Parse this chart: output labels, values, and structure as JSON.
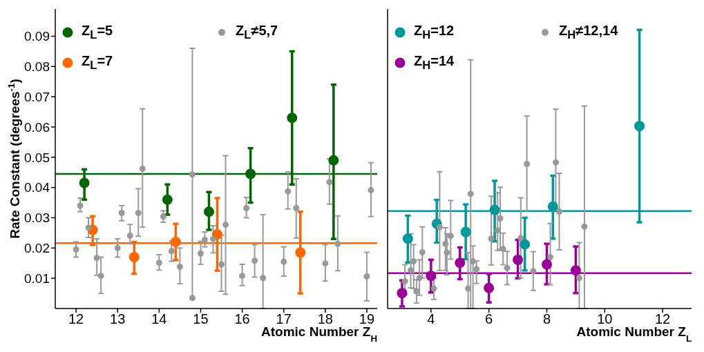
{
  "chart_data": [
    {
      "type": "scatter",
      "xlabel": "Atomic Number Z$_{H}$",
      "ylabel": "Rate Constant (degrees$^{-1}$)",
      "xlim": [
        11.5,
        19.25
      ],
      "xticks": [
        12,
        13,
        14,
        15,
        16,
        17,
        18,
        19
      ],
      "ylim": [
        0,
        0.099
      ],
      "yticks": [
        0.01,
        0.02,
        0.03,
        0.04,
        0.05,
        0.06,
        0.07,
        0.08,
        0.09
      ],
      "marker": "circle",
      "legend": "top",
      "grid": false,
      "series": [
        {
          "name": "Z$_{L}$=5",
          "color": "#006600",
          "x": [
            12.2,
            14.2,
            15.2,
            16.2,
            17.2,
            18.2
          ],
          "values": [
            0.0415,
            0.036,
            0.032,
            0.0445,
            0.063,
            0.049
          ],
          "errors": [
            [
              0.036,
              0.046
            ],
            [
              0.031,
              0.041
            ],
            [
              0.026,
              0.0385
            ],
            [
              0.035,
              0.053
            ],
            [
              0.041,
              0.085
            ],
            [
              0.023,
              0.074
            ]
          ]
        },
        {
          "name": "Z$_{L}$=7",
          "color": "#ff6600",
          "x": [
            12.4,
            13.4,
            14.4,
            15.4,
            17.4
          ],
          "values": [
            0.026,
            0.017,
            0.022,
            0.0245,
            0.0185
          ],
          "errors": [
            [
              0.021,
              0.0305
            ],
            [
              0.0115,
              0.022
            ],
            [
              0.016,
              0.028
            ],
            [
              0.0125,
              0.0365
            ],
            [
              0.005,
              0.032
            ]
          ]
        },
        {
          "name": "Z$_{L}$≠5,7",
          "color": "#999999",
          "x": [
            12.0,
            12.1,
            12.3,
            12.5,
            12.6,
            13.0,
            13.1,
            13.3,
            13.5,
            13.6,
            14.0,
            14.1,
            14.3,
            14.5,
            14.8,
            14.8,
            15.0,
            15.1,
            15.3,
            15.5,
            15.6,
            16.0,
            16.1,
            16.3,
            16.5,
            17.0,
            17.1,
            17.3,
            18.0,
            18.1,
            18.3,
            19.0,
            19.1
          ],
          "values": [
            0.0195,
            0.034,
            0.0267,
            0.0167,
            0.0108,
            0.02,
            0.0316,
            0.0241,
            0.0316,
            0.0462,
            0.0151,
            0.0304,
            0.019,
            0.0138,
            0.0443,
            0.0035,
            0.0182,
            0.0227,
            0.023,
            0.0146,
            0.0277,
            0.0108,
            0.0332,
            0.0158,
            0.0101,
            0.0155,
            0.0387,
            0.0332,
            0.0149,
            0.0418,
            0.0214,
            0.0106,
            0.0391
          ],
          "errors": [
            [
              0.017,
              0.022
            ],
            [
              0.032,
              0.0365
            ],
            [
              0.0235,
              0.03
            ],
            [
              0.011,
              0.023
            ],
            [
              0.005,
              0.017
            ],
            [
              0.017,
              0.023
            ],
            [
              0.029,
              0.034
            ],
            [
              0.0214,
              0.0278
            ],
            [
              0.0239,
              0.0396
            ],
            [
              0.0269,
              0.066
            ],
            [
              0.0127,
              0.0178
            ],
            [
              0.0285,
              0.0323
            ],
            [
              0.0156,
              0.0223
            ],
            [
              0.0082,
              0.02
            ],
            [
              0.003,
              0.086
            ],
            null,
            [
              0.0146,
              0.0222
            ],
            [
              0.0204,
              0.0253
            ],
            [
              0.0184,
              0.0274
            ],
            [
              0.0057,
              0.0243
            ],
            [
              0.0047,
              0.0505
            ],
            [
              0.0076,
              0.0146
            ],
            [
              0.03,
              0.0367
            ],
            [
              0.0104,
              0.0211
            ],
            [
              0,
              0.031
            ],
            [
              0.0107,
              0.0204
            ],
            [
              0.0329,
              0.0451
            ],
            [
              0.0233,
              0.0429
            ],
            [
              0.0091,
              0.0211
            ],
            [
              0.0345,
              0.0495
            ],
            [
              0.0125,
              0.0306
            ],
            [
              0.0025,
              0.0186
            ],
            [
              0.0304,
              0.0482
            ]
          ]
        }
      ],
      "ref_lines": [
        {
          "axis": "y",
          "value": 0.0445,
          "color": "#006600"
        },
        {
          "axis": "y",
          "value": 0.0216,
          "color": "#ff6600"
        }
      ]
    },
    {
      "type": "scatter",
      "xlabel": "Atomic Number Z$_{L}$",
      "xlim": [
        2.5,
        13
      ],
      "xticks": [
        4,
        6,
        8,
        10,
        12
      ],
      "ylim": [
        0,
        0.099
      ],
      "yticks": [
        0.01,
        0.02,
        0.03,
        0.04,
        0.05,
        0.06,
        0.07,
        0.08,
        0.09
      ],
      "tick_labels": "x",
      "marker": "circle",
      "legend": "top",
      "grid": false,
      "series": [
        {
          "name": "Z$_{H}$=12",
          "color": "#009999",
          "x": [
            3.2,
            4.2,
            5.2,
            6.2,
            7.24,
            8.21,
            11.2
          ],
          "values": [
            0.0231,
            0.028,
            0.0253,
            0.0326,
            0.0212,
            0.0337,
            0.0603
          ],
          "errors": [
            [
              0.0152,
              0.0307
            ],
            [
              0.0218,
              0.0359
            ],
            [
              0.0163,
              0.0344
            ],
            [
              0.0222,
              0.0422
            ],
            [
              0.0126,
              0.03
            ],
            [
              0.0231,
              0.0439
            ],
            [
              0.0285,
              0.0921
            ]
          ]
        },
        {
          "name": "Z$_{H}$=14",
          "color": "#990099",
          "x": [
            3.0,
            4.0,
            5.0,
            6.0,
            7.0,
            8.0,
            9.0
          ],
          "values": [
            0.0051,
            0.0108,
            0.0151,
            0.0068,
            0.0161,
            0.0146,
            0.0126
          ],
          "errors": [
            [
              0.0007,
              0.0093
            ],
            [
              0.0053,
              0.0161
            ],
            [
              0.0097,
              0.0202
            ],
            [
              0.002,
              0.0114
            ],
            [
              0.01,
              0.0227
            ],
            [
              0.008,
              0.0214
            ],
            [
              0.0051,
              0.0205
            ]
          ]
        },
        {
          "name": "Z$_{H}$≠12,14",
          "color": "#999999",
          "x": [
            3.1,
            3.3,
            3.4,
            3.5,
            3.6,
            3.7,
            4.1,
            4.3,
            4.5,
            4.55,
            4.68,
            5.28,
            5.37,
            5.45,
            5.57,
            6.08,
            6.3,
            6.39,
            6.49,
            6.63,
            7.1,
            7.31,
            7.53,
            8.12,
            8.31,
            8.43,
            9.12,
            9.3
          ],
          "values": [
            0.009,
            0.0126,
            0.0156,
            0.0057,
            0.0101,
            0.0186,
            0.0066,
            0.0269,
            0.0214,
            0.0185,
            0.024,
            0.0066,
            0.0379,
            0.0156,
            0.013,
            0.0231,
            0.0258,
            0.0298,
            0.0197,
            0.0134,
            0.0233,
            0.0478,
            0.0124,
            0.017,
            0.0483,
            0.032,
            0.0101,
            0.0271
          ],
          "errors": [
            [
              0.0046,
              0.0145
            ],
            [
              0.0068,
              0.0247
            ],
            [
              0.0066,
              0.0211
            ],
            [
              0.0018,
              0.0095
            ],
            [
              0.0044,
              0.0161
            ],
            [
              0.0101,
              0.027
            ],
            [
              0.003,
              0.0101
            ],
            [
              0.0126,
              0.0452
            ],
            [
              0.0126,
              0.0267
            ],
            [
              0.0112,
              0.0247
            ],
            [
              0.0163,
              0.0357
            ],
            [
              0,
              0.0185
            ],
            [
              0,
              0.0822
            ],
            [
              0,
              0.0207
            ],
            [
              0.0083,
              0.0157
            ],
            [
              0.0144,
              0.0371
            ],
            [
              0.0192,
              0.0383
            ],
            [
              0.0196,
              0.0401
            ],
            [
              0.0145,
              0.0249
            ],
            [
              0.0079,
              0.0189
            ],
            [
              0.0101,
              0.0366
            ],
            [
              0.0324,
              0.0636
            ],
            [
              0.006,
              0.0188
            ],
            [
              0.0079,
              0.0281
            ],
            [
              0.033,
              0.0659
            ],
            [
              0.0194,
              0.0447
            ],
            [
              0,
              0.0218
            ],
            [
              0,
              0.0669
            ]
          ]
        }
      ],
      "ref_lines": [
        {
          "axis": "y",
          "value": 0.0322,
          "color": "#009999"
        },
        {
          "axis": "y",
          "value": 0.0117,
          "color": "#990099"
        }
      ]
    }
  ]
}
